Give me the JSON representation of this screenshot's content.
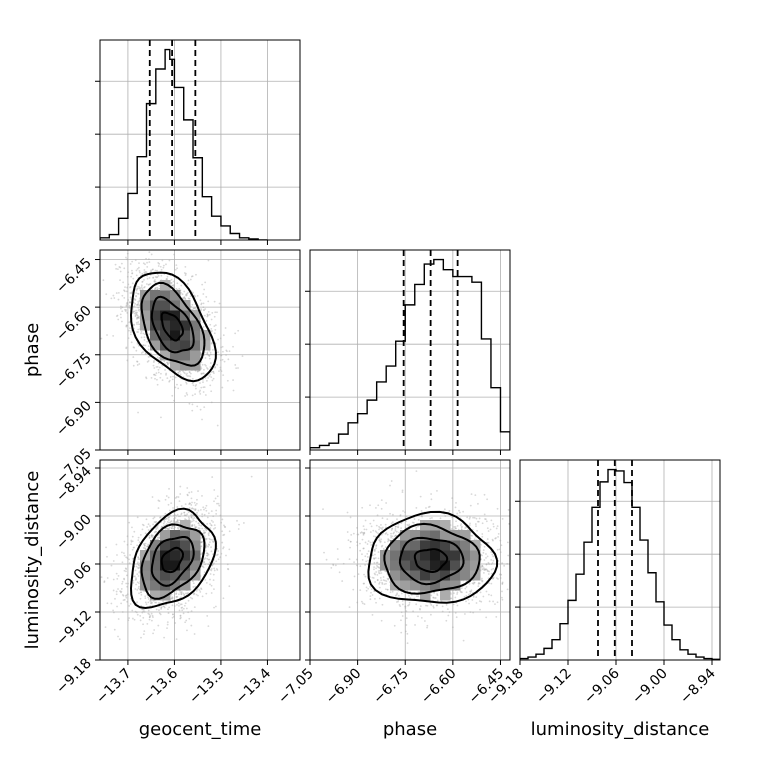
{
  "chart_data": {
    "type": "corner",
    "parameters": [
      "geocent_time",
      "phase",
      "luminosity_distance"
    ],
    "axes": {
      "geocent_time": {
        "label": "geocent_time",
        "range": [
          -13.76,
          -13.33
        ],
        "ticks": [
          -13.7,
          -13.6,
          -13.5,
          -13.4
        ],
        "tick_labels": [
          "−13.7",
          "−13.6",
          "−13.5",
          "−13.4"
        ]
      },
      "phase": {
        "label": "phase",
        "range": [
          -7.05,
          -6.42
        ],
        "ticks": [
          -7.05,
          -6.9,
          -6.75,
          -6.6,
          -6.45
        ],
        "tick_labels": [
          "−7.05",
          "−6.90",
          "−6.75",
          "−6.60",
          "−6.45"
        ]
      },
      "luminosity_distance": {
        "label": "luminosity_distance",
        "range": [
          -9.18,
          -8.93
        ],
        "ticks": [
          -9.18,
          -9.12,
          -9.06,
          -9.0,
          -8.94
        ],
        "tick_labels": [
          "−9.18",
          "−9.12",
          "−9.06",
          "−9.00",
          "−8.94"
        ]
      }
    },
    "histograms": {
      "geocent_time": {
        "quantiles": [
          -13.653,
          -13.605,
          -13.555
        ],
        "bin_edges": [
          -13.76,
          -13.74,
          -13.72,
          -13.7,
          -13.68,
          -13.66,
          -13.64,
          -13.62,
          -13.61,
          -13.6,
          -13.58,
          -13.56,
          -13.54,
          -13.52,
          -13.5,
          -13.48,
          -13.46,
          -13.44,
          -13.42,
          -13.4
        ],
        "counts": [
          2,
          5,
          20,
          43,
          77,
          126,
          158,
          176,
          167,
          141,
          111,
          76,
          40,
          22,
          13,
          6,
          2,
          1,
          0
        ]
      },
      "phase": {
        "quantiles": [
          -6.755,
          -6.67,
          -6.585
        ],
        "bin_edges": [
          -7.05,
          -7.02,
          -6.99,
          -6.96,
          -6.93,
          -6.9,
          -6.87,
          -6.84,
          -6.81,
          -6.78,
          -6.75,
          -6.72,
          -6.69,
          -6.66,
          -6.63,
          -6.6,
          -6.57,
          -6.54,
          -6.51,
          -6.48,
          -6.45,
          -6.42
        ],
        "counts": [
          2,
          4,
          6,
          14,
          24,
          32,
          44,
          60,
          74,
          96,
          128,
          146,
          164,
          168,
          159,
          153,
          153,
          148,
          98,
          55,
          16
        ]
      },
      "luminosity_distance": {
        "quantiles": [
          -9.0825,
          -9.0615,
          -9.04
        ],
        "bin_edges": [
          -9.18,
          -9.17,
          -9.16,
          -9.15,
          -9.14,
          -9.13,
          -9.12,
          -9.11,
          -9.1,
          -9.09,
          -9.08,
          -9.07,
          -9.06,
          -9.05,
          -9.04,
          -9.03,
          -9.02,
          -9.01,
          -9.0,
          -8.99,
          -8.98,
          -8.97,
          -8.96,
          -8.95,
          -8.94,
          -8.93
        ],
        "counts": [
          2,
          4,
          8,
          16,
          28,
          50,
          82,
          118,
          162,
          210,
          245,
          262,
          260,
          244,
          210,
          165,
          120,
          80,
          48,
          28,
          14,
          8,
          4,
          2,
          1
        ]
      }
    },
    "pairs": [
      {
        "x": "geocent_time",
        "y": "phase",
        "center": [
          -13.605,
          -6.66
        ],
        "sigma": [
          0.045,
          0.085
        ],
        "correlation": -0.45
      },
      {
        "x": "geocent_time",
        "y": "luminosity_distance",
        "center": [
          -13.605,
          -9.055
        ],
        "sigma": [
          0.045,
          0.03
        ],
        "correlation": 0.35
      },
      {
        "x": "phase",
        "y": "luminosity_distance",
        "center": [
          -6.67,
          -9.055
        ],
        "sigma": [
          0.1,
          0.028
        ],
        "correlation": 0.0
      }
    ],
    "grid": true,
    "legend": false
  }
}
